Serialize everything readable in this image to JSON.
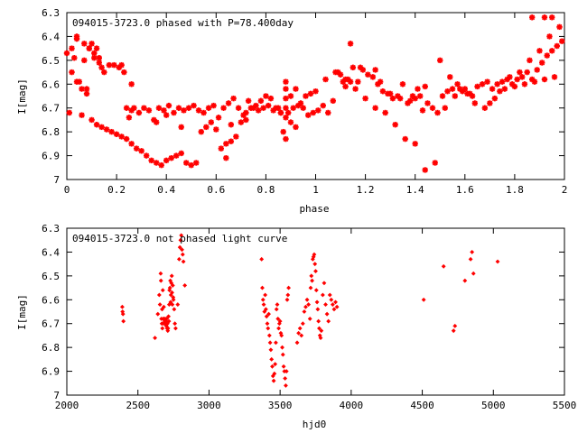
{
  "chart_data": [
    {
      "type": "scatter",
      "title": "094015-3723.0 phased with P=78.400day",
      "xlabel": "phase",
      "ylabel": "I[mag]",
      "xlim": [
        0,
        2
      ],
      "ylim": [
        7.0,
        6.3
      ],
      "y_inverted": true,
      "x_ticks": [
        "0",
        "0.2",
        "0.4",
        "0.6",
        "0.8",
        "1",
        "1.2",
        "1.4",
        "1.6",
        "1.8",
        "2"
      ],
      "y_ticks": [
        "6.3",
        "6.4",
        "6.5",
        "6.6",
        "6.7",
        "6.8",
        "6.9",
        "7"
      ],
      "grid": false,
      "marker": "star",
      "color": "#ff0000",
      "series": [
        {
          "x": [
            0.0,
            0.01,
            0.02,
            0.03,
            0.04,
            0.05,
            0.06,
            0.07,
            0.08,
            0.09,
            0.1,
            0.11,
            0.12,
            0.13,
            0.14,
            0.15,
            0.17,
            0.19,
            0.21,
            0.23,
            0.24,
            0.25,
            0.26,
            0.27,
            0.29,
            0.31,
            0.33,
            0.35,
            0.37,
            0.39,
            0.4,
            0.41,
            0.43,
            0.45,
            0.47,
            0.49,
            0.51,
            0.53,
            0.55,
            0.57,
            0.59,
            0.61,
            0.63,
            0.65,
            0.67,
            0.69,
            0.71,
            0.73,
            0.75,
            0.77,
            0.79,
            0.81,
            0.83,
            0.85,
            0.87,
            0.88,
            0.88,
            0.88,
            0.88,
            0.89,
            0.9,
            0.91,
            0.93,
            0.95,
            0.97,
            0.99,
            1.0,
            1.01,
            1.03,
            1.05,
            1.07,
            1.09,
            1.1,
            1.11,
            1.12,
            1.13,
            1.14,
            1.15,
            1.17,
            1.19,
            1.21,
            1.23,
            1.25,
            1.27,
            1.29,
            1.31,
            1.33,
            1.35,
            1.37,
            1.39,
            1.4,
            1.41,
            1.43,
            1.45,
            1.47,
            1.49,
            1.51,
            1.53,
            1.55,
            1.57,
            1.59,
            1.61,
            1.63,
            1.65,
            1.67,
            1.69,
            1.71,
            1.73,
            1.75,
            1.77,
            1.79,
            1.81,
            1.83,
            1.85,
            1.87,
            1.89,
            1.91,
            1.93,
            1.95,
            1.97,
            1.99,
            0.02,
            0.04,
            0.06,
            0.08,
            0.1,
            0.12,
            0.14,
            0.16,
            0.18,
            0.2,
            0.22,
            0.24,
            0.26,
            0.28,
            0.3,
            0.32,
            0.34,
            0.36,
            0.38,
            0.4,
            0.42,
            0.44,
            0.46,
            0.48,
            0.5,
            0.52,
            0.54,
            0.56,
            0.58,
            0.6,
            0.62,
            0.64,
            0.66,
            0.68,
            0.7,
            0.72,
            0.74,
            0.76,
            0.78,
            0.8,
            0.82,
            0.84,
            0.86,
            0.88,
            0.9,
            0.92,
            0.94,
            0.96,
            0.98,
            1.08,
            1.12,
            1.16,
            1.2,
            1.24,
            1.28,
            1.32,
            1.36,
            1.4,
            1.44,
            1.48,
            1.52,
            1.56,
            1.6,
            1.64,
            1.68,
            1.72,
            1.76,
            1.8,
            1.84,
            1.88,
            1.92,
            1.96,
            0.04,
            0.07,
            0.09,
            0.11,
            0.13,
            0.22,
            0.26,
            0.36,
            0.46,
            0.64,
            0.66,
            0.72,
            0.86,
            0.88,
            0.92,
            1.04,
            1.14,
            1.18,
            1.24,
            1.26,
            1.3,
            1.34,
            1.38,
            1.42,
            1.44,
            1.5,
            1.54,
            1.58,
            1.62,
            1.7,
            1.74,
            1.78,
            1.82,
            1.86,
            1.9,
            1.94,
            1.98,
            1.92,
            1.95,
            1.87
          ],
          "y": [
            6.47,
            6.72,
            6.45,
            6.49,
            6.4,
            6.59,
            6.73,
            6.5,
            6.62,
            6.45,
            6.43,
            6.49,
            6.45,
            6.51,
            6.53,
            6.55,
            6.52,
            6.52,
            6.53,
            6.55,
            6.7,
            6.74,
            6.71,
            6.7,
            6.72,
            6.7,
            6.71,
            6.75,
            6.7,
            6.71,
            6.73,
            6.69,
            6.72,
            6.7,
            6.71,
            6.7,
            6.69,
            6.71,
            6.72,
            6.7,
            6.69,
            6.74,
            6.7,
            6.68,
            6.66,
            6.7,
            6.73,
            6.67,
            6.7,
            6.71,
            6.7,
            6.69,
            6.71,
            6.7,
            6.8,
            6.7,
            6.66,
            6.62,
            6.59,
            6.72,
            6.65,
            6.7,
            6.69,
            6.7,
            6.73,
            6.72,
            6.63,
            6.71,
            6.69,
            6.72,
            6.67,
            6.55,
            6.56,
            6.59,
            6.61,
            6.58,
            6.59,
            6.53,
            6.59,
            6.54,
            6.56,
            6.57,
            6.6,
            6.63,
            6.64,
            6.66,
            6.65,
            6.6,
            6.68,
            6.65,
            6.66,
            6.62,
            6.71,
            6.68,
            6.7,
            6.72,
            6.65,
            6.63,
            6.62,
            6.6,
            6.63,
            6.64,
            6.65,
            6.61,
            6.6,
            6.59,
            6.62,
            6.6,
            6.59,
            6.58,
            6.6,
            6.58,
            6.57,
            6.55,
            6.58,
            6.54,
            6.51,
            6.48,
            6.46,
            6.44,
            6.42,
            6.55,
            6.59,
            6.62,
            6.64,
            6.75,
            6.77,
            6.78,
            6.79,
            6.8,
            6.81,
            6.82,
            6.83,
            6.85,
            6.87,
            6.88,
            6.9,
            6.92,
            6.93,
            6.94,
            6.92,
            6.91,
            6.9,
            6.89,
            6.93,
            6.94,
            6.93,
            6.8,
            6.78,
            6.76,
            6.79,
            6.87,
            6.91,
            6.84,
            6.82,
            6.76,
            6.72,
            6.7,
            6.69,
            6.67,
            6.65,
            6.66,
            6.7,
            6.72,
            6.74,
            6.76,
            6.78,
            6.68,
            6.65,
            6.64,
            6.55,
            6.58,
            6.62,
            6.66,
            6.7,
            6.72,
            6.77,
            6.83,
            6.85,
            6.96,
            6.93,
            6.7,
            6.65,
            6.62,
            6.68,
            6.7,
            6.66,
            6.62,
            6.61,
            6.6,
            6.59,
            6.58,
            6.57,
            6.41,
            6.43,
            6.45,
            6.47,
            6.49,
            6.52,
            6.6,
            6.76,
            6.78,
            6.85,
            6.77,
            6.75,
            6.72,
            6.83,
            6.62,
            6.58,
            6.43,
            6.53,
            6.54,
            6.59,
            6.64,
            6.66,
            6.67,
            6.65,
            6.61,
            6.5,
            6.57,
            6.62,
            6.64,
            6.68,
            6.63,
            6.57,
            6.55,
            6.5,
            6.46,
            6.4,
            6.36,
            6.32,
            6.32,
            6.32
          ]
        }
      ]
    },
    {
      "type": "scatter",
      "title": "094015-3723.0 not phased light curve",
      "xlabel": "hjd0",
      "ylabel": "I[mag]",
      "xlim": [
        2000,
        5500
      ],
      "ylim": [
        7.0,
        6.3
      ],
      "y_inverted": true,
      "x_ticks": [
        "2000",
        "2500",
        "3000",
        "3500",
        "4000",
        "4500",
        "5000",
        "5500"
      ],
      "y_ticks": [
        "6.3",
        "6.4",
        "6.5",
        "6.6",
        "6.7",
        "6.8",
        "6.9",
        "7"
      ],
      "grid": false,
      "marker": "diamond",
      "color": "#ff0000",
      "series": [
        {
          "x": [
            2390,
            2392,
            2395,
            2398,
            2620,
            2640,
            2650,
            2655,
            2660,
            2662,
            2665,
            2668,
            2670,
            2672,
            2675,
            2678,
            2680,
            2682,
            2685,
            2688,
            2690,
            2692,
            2695,
            2698,
            2700,
            2702,
            2705,
            2708,
            2710,
            2712,
            2715,
            2718,
            2720,
            2722,
            2725,
            2728,
            2730,
            2732,
            2735,
            2738,
            2740,
            2742,
            2745,
            2748,
            2750,
            2755,
            2760,
            2765,
            2780,
            2790,
            2795,
            2800,
            2805,
            2810,
            2815,
            2820,
            2830,
            3370,
            3375,
            3380,
            3385,
            3390,
            3395,
            3400,
            3405,
            3410,
            3415,
            3420,
            3425,
            3430,
            3435,
            3440,
            3445,
            3450,
            3455,
            3460,
            3465,
            3470,
            3475,
            3480,
            3485,
            3490,
            3495,
            3500,
            3505,
            3510,
            3515,
            3520,
            3525,
            3530,
            3535,
            3540,
            3545,
            3550,
            3555,
            3560,
            3620,
            3630,
            3640,
            3650,
            3660,
            3670,
            3680,
            3690,
            3700,
            3710,
            3715,
            3720,
            3725,
            3730,
            3735,
            3740,
            3745,
            3750,
            3755,
            3760,
            3765,
            3770,
            3775,
            3780,
            3785,
            3790,
            3800,
            3810,
            3820,
            3830,
            3840,
            3850,
            3860,
            3870,
            3880,
            3890,
            3900,
            4510,
            4650,
            4720,
            4730,
            4800,
            4840,
            4850,
            4860,
            5030
          ],
          "y": [
            6.63,
            6.65,
            6.66,
            6.69,
            6.76,
            6.66,
            6.58,
            6.62,
            6.49,
            6.52,
            6.68,
            6.7,
            6.64,
            6.72,
            6.56,
            6.68,
            6.7,
            6.63,
            6.68,
            6.69,
            6.7,
            6.68,
            6.7,
            6.69,
            6.71,
            6.68,
            6.72,
            6.7,
            6.73,
            6.72,
            6.67,
            6.69,
            6.62,
            6.56,
            6.55,
            6.52,
            6.61,
            6.58,
            6.53,
            6.5,
            6.57,
            6.62,
            6.54,
            6.59,
            6.6,
            6.64,
            6.7,
            6.72,
            6.62,
            6.43,
            6.38,
            6.35,
            6.33,
            6.39,
            6.41,
            6.44,
            6.54,
            6.43,
            6.55,
            6.6,
            6.62,
            6.65,
            6.58,
            6.64,
            6.67,
            6.7,
            6.72,
            6.66,
            6.75,
            6.78,
            6.81,
            6.85,
            6.88,
            6.92,
            6.94,
            6.91,
            6.87,
            6.78,
            6.64,
            6.62,
            6.68,
            6.72,
            6.7,
            6.69,
            6.74,
            6.75,
            6.8,
            6.83,
            6.88,
            6.9,
            6.93,
            6.96,
            6.9,
            6.6,
            6.58,
            6.55,
            6.78,
            6.74,
            6.72,
            6.75,
            6.7,
            6.65,
            6.63,
            6.6,
            6.62,
            6.68,
            6.55,
            6.5,
            6.52,
            6.43,
            6.42,
            6.41,
            6.45,
            6.48,
            6.56,
            6.61,
            6.64,
            6.69,
            6.72,
            6.75,
            6.76,
            6.73,
            6.58,
            6.53,
            6.62,
            6.66,
            6.69,
            6.58,
            6.6,
            6.62,
            6.64,
            6.61,
            6.63,
            6.6,
            6.46,
            6.73,
            6.71,
            6.52,
            6.43,
            6.4,
            6.49,
            6.44
          ]
        }
      ]
    }
  ]
}
